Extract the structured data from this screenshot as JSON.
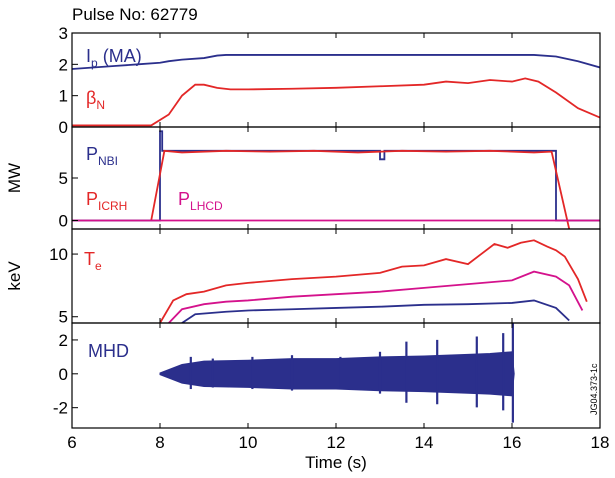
{
  "chart_data": {
    "type": "line",
    "title": "Pulse No: 62779",
    "watermark": "JG04.373-1c",
    "colors": {
      "blue": "#2b2f8c",
      "red": "#e32727",
      "magenta": "#d4128c"
    },
    "xlabel": "Time (s)",
    "xlim": [
      6,
      18
    ],
    "xticks": [
      "6",
      "8",
      "10",
      "12",
      "14",
      "16",
      "18"
    ],
    "panels": [
      {
        "ylabel": "",
        "ylim": [
          0,
          3
        ],
        "yticks": [
          "0",
          "1",
          "2",
          "3"
        ],
        "series": [
          {
            "label": "I",
            "sub": "p",
            "suffix": " (MA)",
            "color": "blue",
            "x": [
              6,
              7,
              7.5,
              8,
              8.2,
              8.5,
              9,
              9.3,
              9.5,
              10,
              12,
              14,
              16,
              16.5,
              17,
              17.5,
              18
            ],
            "y": [
              1.85,
              1.95,
              2.0,
              2.05,
              2.1,
              2.15,
              2.2,
              2.28,
              2.3,
              2.3,
              2.3,
              2.3,
              2.3,
              2.3,
              2.25,
              2.1,
              1.9
            ]
          },
          {
            "label": "β",
            "sub": "N",
            "suffix": "",
            "color": "red",
            "x": [
              6,
              7.8,
              8.2,
              8.5,
              8.8,
              9.0,
              9.3,
              9.6,
              10,
              11,
              12,
              13,
              14,
              14.5,
              15,
              15.5,
              16,
              16.3,
              16.6,
              17.0,
              17.5,
              18
            ],
            "y": [
              0.05,
              0.05,
              0.4,
              1.0,
              1.35,
              1.35,
              1.25,
              1.2,
              1.2,
              1.22,
              1.25,
              1.3,
              1.35,
              1.45,
              1.4,
              1.5,
              1.45,
              1.55,
              1.45,
              1.1,
              0.6,
              0.3
            ]
          }
        ]
      },
      {
        "ylabel": "MW",
        "ylim": [
          -1,
          11
        ],
        "yticks": [
          "0",
          "5"
        ],
        "series": [
          {
            "label": "P",
            "sub": "NBI",
            "suffix": "",
            "color": "blue",
            "x": [
              6,
              8.0,
              8.0,
              8.05,
              8.05,
              13.0,
              13.0,
              13.1,
              13.1,
              17.0,
              17.0,
              18
            ],
            "y": [
              0,
              0,
              10.5,
              10.5,
              8.2,
              8.2,
              7.2,
              7.2,
              8.2,
              8.2,
              0,
              0
            ]
          },
          {
            "label": "P",
            "sub": "ICRH",
            "suffix": "",
            "color": "red",
            "x": [
              7.8,
              8.1,
              8.5,
              9.5,
              10.5,
              11.5,
              12.5,
              13.5,
              14.5,
              15.5,
              16.5,
              16.9,
              17.3
            ],
            "y": [
              0,
              8.2,
              8.0,
              8.2,
              8.1,
              8.2,
              8.0,
              8.2,
              8.1,
              8.2,
              8.0,
              8.1,
              -1
            ]
          },
          {
            "label": "P",
            "sub": "LHCD",
            "suffix": "",
            "color": "magenta",
            "x": [
              6,
              8,
              12,
              16,
              17,
              18
            ],
            "y": [
              0,
              0,
              0,
              0,
              0,
              0
            ]
          }
        ]
      },
      {
        "ylabel": "keV",
        "ylim": [
          4.5,
          12
        ],
        "yticks": [
          "5",
          "10"
        ],
        "series": [
          {
            "label": "T",
            "sub": "e",
            "suffix": "",
            "color": "red",
            "x": [
              8.0,
              8.3,
              8.6,
              9.0,
              9.5,
              10,
              11,
              12,
              13,
              13.5,
              14,
              14.5,
              15,
              15.3,
              15.6,
              15.9,
              16.2,
              16.5,
              16.8,
              17.0,
              17.2,
              17.5,
              17.7
            ],
            "y": [
              4.5,
              6.3,
              6.8,
              7.0,
              7.5,
              7.7,
              8.0,
              8.2,
              8.5,
              9.0,
              9.1,
              9.6,
              9.2,
              10.0,
              10.8,
              10.5,
              10.9,
              11.1,
              10.6,
              10.3,
              9.8,
              8.0,
              6.2
            ]
          },
          {
            "label": "",
            "sub": "",
            "suffix": "",
            "color": "magenta",
            "x": [
              8.2,
              8.5,
              9.0,
              9.5,
              10,
              11,
              12,
              13,
              14,
              15,
              16,
              16.5,
              17.0,
              17.3,
              17.6
            ],
            "y": [
              4.5,
              5.6,
              6.0,
              6.2,
              6.3,
              6.6,
              6.8,
              7.0,
              7.3,
              7.6,
              7.9,
              8.6,
              8.2,
              7.5,
              5.5
            ]
          },
          {
            "label": "",
            "sub": "",
            "suffix": "",
            "color": "blue",
            "x": [
              8.5,
              8.8,
              9.5,
              10,
              11,
              12,
              13,
              14,
              15,
              16,
              16.5,
              17.0,
              17.3
            ],
            "y": [
              4.5,
              5.2,
              5.4,
              5.5,
              5.6,
              5.7,
              5.8,
              5.95,
              6.0,
              6.1,
              6.3,
              5.7,
              4.7
            ]
          }
        ]
      },
      {
        "ylabel": "",
        "ylim": [
          -3.2,
          3
        ],
        "yticks": [
          "-2",
          "0",
          "2"
        ],
        "series": [
          {
            "label": "MHD",
            "sub": "",
            "suffix": "",
            "color": "blue",
            "x": [
              8.0,
              8.5,
              9,
              10,
              11,
              12,
              13,
              14,
              15,
              15.5,
              16.0,
              16.05
            ],
            "y": [
              0.05,
              0.55,
              0.75,
              0.8,
              0.9,
              0.9,
              1.0,
              1.05,
              1.15,
              1.2,
              1.3,
              0.0
            ]
          }
        ]
      }
    ]
  }
}
